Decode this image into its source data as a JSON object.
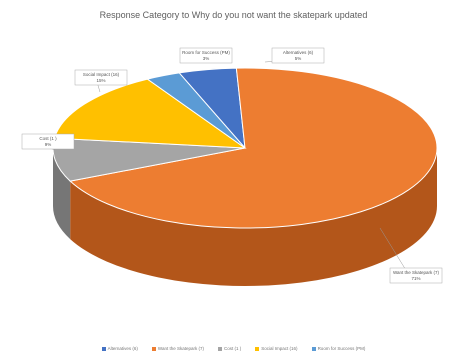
{
  "chart_data": {
    "type": "pie",
    "style": "3d",
    "title": "Response Category to Why do you not want the skatepark updated",
    "slices": [
      {
        "name": "Alternatives (6)",
        "label": "Alternatives (6)",
        "value_label": "5%",
        "value": 5,
        "color": "#4472C4",
        "side_color": "#2F528F"
      },
      {
        "name": "Want the Skatepark (7)",
        "label": "Want the Skatepark (7)",
        "value_label": "71%",
        "value": 71,
        "color": "#ED7D31",
        "side_color": "#B3561A"
      },
      {
        "name": "Cost (1 )",
        "label": "Cost (1 )",
        "value_label": "9%",
        "value": 9,
        "color": "#A5A5A5",
        "side_color": "#767676"
      },
      {
        "name": "Social Impact (16)",
        "label": "Social Impact (16)",
        "value_label": "15%",
        "value": 15,
        "color": "#FFC000",
        "side_color": "#BF9000"
      },
      {
        "name": "Room for Success (PM)",
        "label": "Room for Success (PM)",
        "value_label": "3%",
        "value": 3,
        "color": "#5B9BD5",
        "side_color": "#41729F"
      }
    ],
    "legend_position": "bottom"
  }
}
